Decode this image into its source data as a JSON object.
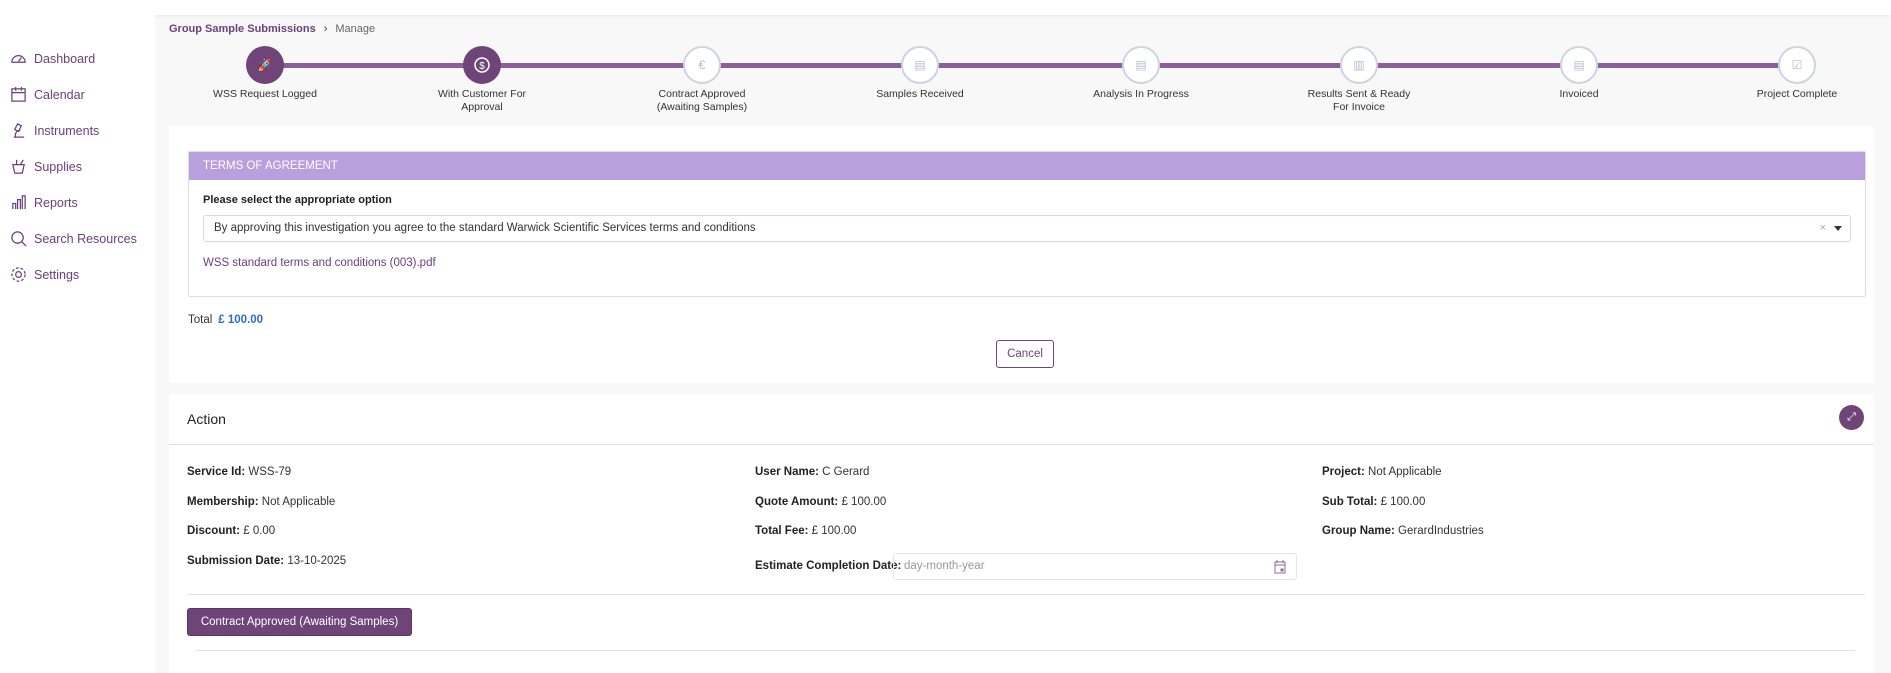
{
  "sidebar": {
    "items": [
      {
        "label": "Dashboard",
        "icon": "dashboard-icon"
      },
      {
        "label": "Calendar",
        "icon": "calendar-icon"
      },
      {
        "label": "Instruments",
        "icon": "microscope-icon"
      },
      {
        "label": "Supplies",
        "icon": "flask-icon"
      },
      {
        "label": "Reports",
        "icon": "bar-chart-icon"
      },
      {
        "label": "Search Resources",
        "icon": "search-icon"
      },
      {
        "label": "Settings",
        "icon": "gear-icon"
      }
    ]
  },
  "breadcrumb": {
    "parent": "Group Sample Submissions",
    "current": "Manage"
  },
  "stepper": {
    "steps": [
      {
        "label": "WSS Request Logged",
        "status": "done"
      },
      {
        "label": "With Customer For Approval",
        "status": "done"
      },
      {
        "label": "Contract Approved (Awaiting Samples)",
        "status": "pending"
      },
      {
        "label": "Samples Received",
        "status": "pending"
      },
      {
        "label": "Analysis In Progress",
        "status": "pending"
      },
      {
        "label": "Results Sent & Ready For Invoice",
        "status": "pending"
      },
      {
        "label": "Invoiced",
        "status": "pending"
      },
      {
        "label": "Project Complete",
        "status": "pending"
      }
    ]
  },
  "terms": {
    "header": "TERMS OF AGREEMENT",
    "prompt": "Please select the appropriate option",
    "selected_option": "By approving this investigation you agree to the standard Warwick Scientific Services terms and conditions",
    "clear": "×",
    "pdf_link": "WSS standard terms and conditions (003).pdf",
    "total_label": "Total",
    "total_value": "£ 100.00",
    "cancel_label": "Cancel"
  },
  "action": {
    "title": "Action",
    "fields": {
      "service_id": {
        "label": "Service Id:",
        "value": "WSS-79"
      },
      "membership": {
        "label": "Membership:",
        "value": "Not Applicable"
      },
      "discount": {
        "label": "Discount:",
        "value": "£ 0.00"
      },
      "submission_date": {
        "label": "Submission Date:",
        "value": "13-10-2025"
      },
      "user_name": {
        "label": "User Name:",
        "value": "C Gerard"
      },
      "quote_amount": {
        "label": "Quote Amount:",
        "value": "£ 100.00"
      },
      "total_fee": {
        "label": "Total Fee:",
        "value": "£ 100.00"
      },
      "estimate_completion": {
        "label": "Estimate Completion Date:",
        "placeholder": "day-month-year"
      },
      "project": {
        "label": "Project:",
        "value": "Not Applicable"
      },
      "sub_total": {
        "label": "Sub Total:",
        "value": "£ 100.00"
      },
      "group_name": {
        "label": "Group Name:",
        "value": "GerardIndustries"
      }
    },
    "submit_label": "Contract Approved (Awaiting Samples)"
  },
  "colors": {
    "primary": "#6f4478",
    "header": "#b8a0dc",
    "total": "#2f6dc4"
  }
}
